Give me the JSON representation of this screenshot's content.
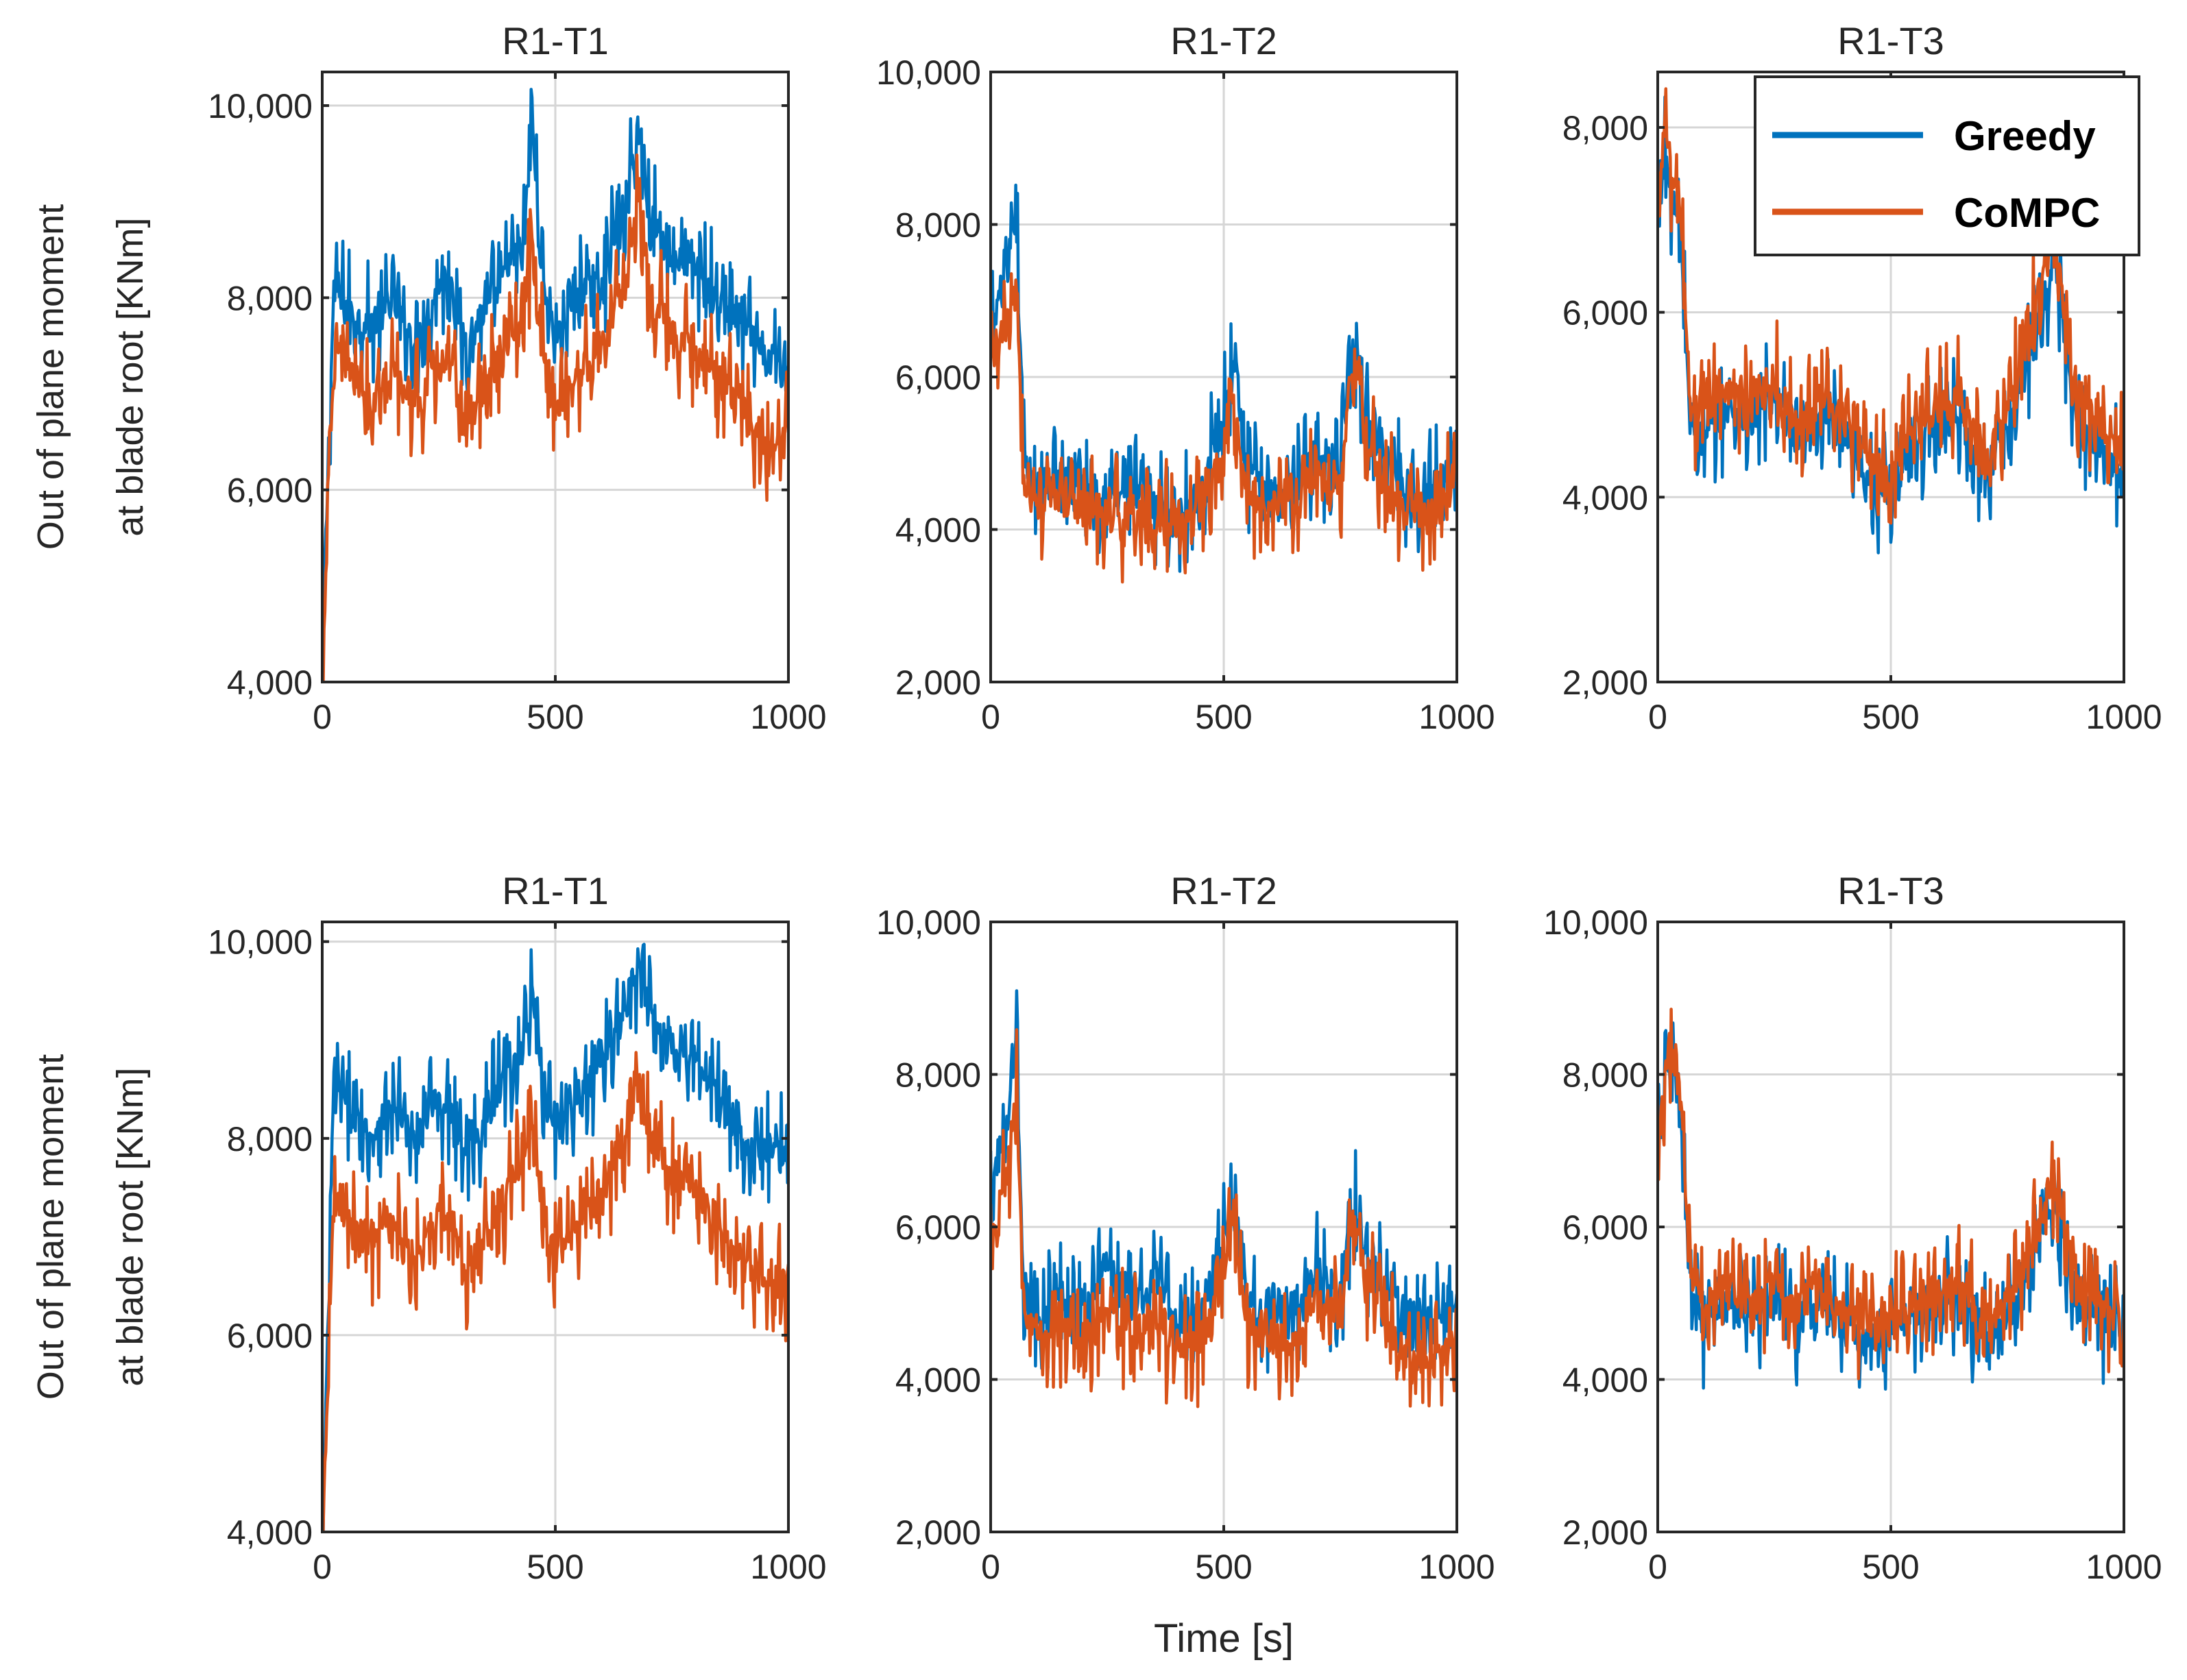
{
  "figure": {
    "colors": {
      "greedy": "#0072BD",
      "compc": "#D95319",
      "axis": "#262626",
      "grid": "#d6d6d6"
    }
  },
  "chart_data": [
    {
      "type": "line",
      "title": "R1-T1",
      "xlabel": "",
      "ylabel_lines": [
        "Out of plane moment",
        "at blade root [KNm]"
      ],
      "xlim": [
        0,
        1000
      ],
      "ylim": [
        4000,
        10350
      ],
      "xticks": [
        0,
        500,
        1000
      ],
      "xtick_labels": [
        "0",
        "500",
        "1000"
      ],
      "yticks": [
        4000,
        6000,
        8000,
        10000
      ],
      "ytick_labels": [
        "4,000",
        "6,000",
        "8,000",
        "10,000"
      ],
      "grid": true,
      "legend": null,
      "series": [
        {
          "name": "Greedy",
          "color": "#0072BD",
          "x": [
            0,
            25,
            50,
            75,
            100,
            150,
            200,
            250,
            280,
            300,
            350,
            400,
            430,
            450,
            470,
            500,
            550,
            600,
            650,
            680,
            700,
            750,
            800,
            850,
            900,
            950,
            1000
          ],
          "y": [
            4600,
            8500,
            8300,
            8200,
            8100,
            8300,
            7900,
            8500,
            8600,
            7900,
            8200,
            8700,
            8800,
            10300,
            8600,
            8000,
            8400,
            8600,
            9300,
            10100,
            9300,
            8800,
            8700,
            8400,
            8100,
            7700,
            7800
          ]
        },
        {
          "name": "CoMPC",
          "color": "#D95319",
          "x": [
            0,
            25,
            50,
            75,
            100,
            150,
            200,
            250,
            280,
            300,
            350,
            400,
            430,
            450,
            470,
            500,
            550,
            600,
            650,
            680,
            700,
            750,
            800,
            850,
            900,
            950,
            1000
          ],
          "y": [
            4500,
            7800,
            7700,
            7600,
            7300,
            7600,
            7300,
            7700,
            7600,
            7100,
            7400,
            7900,
            8100,
            9000,
            7900,
            7300,
            7600,
            7900,
            8500,
            9600,
            8500,
            8000,
            7900,
            7500,
            7300,
            6800,
            7000
          ]
        }
      ]
    },
    {
      "type": "line",
      "title": "R1-T2",
      "xlabel": "",
      "ylabel": "",
      "xlim": [
        0,
        1000
      ],
      "ylim": [
        2000,
        10000
      ],
      "xticks": [
        0,
        500,
        1000
      ],
      "xtick_labels": [
        "0",
        "500",
        "1000"
      ],
      "yticks": [
        2000,
        4000,
        6000,
        8000,
        10000
      ],
      "ytick_labels": [
        "2,000",
        "4,000",
        "6,000",
        "8,000",
        "10,000"
      ],
      "grid": true,
      "legend": null,
      "series": [
        {
          "name": "Greedy",
          "color": "#0072BD",
          "x": [
            0,
            20,
            40,
            55,
            70,
            100,
            150,
            200,
            250,
            300,
            350,
            400,
            450,
            500,
            520,
            550,
            600,
            650,
            700,
            750,
            780,
            800,
            850,
            900,
            950,
            1000
          ],
          "y": [
            7000,
            7500,
            7800,
            8700,
            5500,
            5000,
            5200,
            5100,
            4900,
            5000,
            4800,
            4600,
            5000,
            6000,
            6700,
            5200,
            5000,
            5000,
            5500,
            5200,
            7000,
            6000,
            5400,
            5000,
            5000,
            5600
          ]
        },
        {
          "name": "CoMPC",
          "color": "#D95319",
          "x": [
            0,
            20,
            40,
            55,
            70,
            100,
            150,
            200,
            250,
            300,
            350,
            400,
            450,
            500,
            520,
            550,
            600,
            650,
            700,
            750,
            780,
            800,
            850,
            900,
            950,
            1000
          ],
          "y": [
            6500,
            7000,
            7200,
            8000,
            5100,
            4700,
            4900,
            4800,
            4600,
            4700,
            4600,
            4500,
            4800,
            5600,
            6300,
            4900,
            4800,
            4800,
            5200,
            5000,
            6800,
            5700,
            5000,
            4700,
            4700,
            5200
          ]
        }
      ]
    },
    {
      "type": "line",
      "title": "R1-T3",
      "xlabel": "",
      "ylabel": "",
      "xlim": [
        0,
        1000
      ],
      "ylim": [
        2000,
        8600
      ],
      "xticks": [
        0,
        500,
        1000
      ],
      "xtick_labels": [
        "0",
        "500",
        "1000"
      ],
      "yticks": [
        2000,
        4000,
        6000,
        8000
      ],
      "ytick_labels": [
        "2,000",
        "4,000",
        "6,000",
        "8,000"
      ],
      "grid": true,
      "legend": {
        "position": "top-right",
        "entries": [
          "Greedy",
          "CoMPC"
        ]
      },
      "series": [
        {
          "name": "Greedy",
          "color": "#0072BD",
          "x": [
            0,
            15,
            30,
            50,
            70,
            100,
            150,
            200,
            250,
            300,
            350,
            400,
            450,
            500,
            550,
            600,
            650,
            700,
            750,
            800,
            850,
            900,
            950,
            1000
          ],
          "y": [
            7300,
            8200,
            7600,
            7200,
            5200,
            5000,
            5400,
            5200,
            5500,
            4900,
            5300,
            5200,
            4600,
            4300,
            5000,
            5200,
            5300,
            4600,
            5100,
            6000,
            7000,
            5200,
            4900,
            4600
          ]
        },
        {
          "name": "CoMPC",
          "color": "#D95319",
          "x": [
            0,
            15,
            30,
            50,
            70,
            100,
            150,
            200,
            250,
            300,
            350,
            400,
            450,
            500,
            550,
            600,
            650,
            700,
            750,
            800,
            850,
            900,
            950,
            1000
          ],
          "y": [
            7400,
            8500,
            7800,
            7400,
            5400,
            5300,
            5600,
            5400,
            5700,
            5100,
            5500,
            5300,
            4800,
            4600,
            5200,
            5400,
            5500,
            4900,
            5300,
            6300,
            7300,
            5500,
            5100,
            4900
          ]
        }
      ]
    },
    {
      "type": "line",
      "title": "R1-T1",
      "xlabel": "",
      "ylabel_lines": [
        "Out of plane moment",
        "at blade root [KNm]"
      ],
      "xlim": [
        0,
        1000
      ],
      "ylim": [
        4000,
        10200
      ],
      "xticks": [
        0,
        500,
        1000
      ],
      "xtick_labels": [
        "0",
        "500",
        "1000"
      ],
      "yticks": [
        4000,
        6000,
        8000,
        10000
      ],
      "ytick_labels": [
        "4,000",
        "6,000",
        "8,000",
        "10,000"
      ],
      "grid": true,
      "legend": null,
      "series": [
        {
          "name": "Greedy",
          "color": "#0072BD",
          "x": [
            0,
            25,
            50,
            75,
            100,
            150,
            200,
            250,
            280,
            300,
            350,
            400,
            430,
            450,
            470,
            500,
            550,
            600,
            650,
            680,
            700,
            750,
            800,
            850,
            900,
            950,
            1000
          ],
          "y": [
            4000,
            9000,
            8700,
            8600,
            8400,
            8700,
            8300,
            8800,
            8700,
            8200,
            8600,
            9200,
            9300,
            9900,
            9000,
            8500,
            8800,
            9200,
            9600,
            10100,
            9700,
            9300,
            9200,
            8800,
            8400,
            8200,
            8300
          ]
        },
        {
          "name": "CoMPC",
          "color": "#D95319",
          "x": [
            0,
            25,
            50,
            75,
            100,
            150,
            200,
            250,
            280,
            300,
            350,
            400,
            430,
            450,
            470,
            500,
            550,
            600,
            650,
            680,
            700,
            750,
            800,
            850,
            900,
            950,
            1000
          ],
          "y": [
            4000,
            7900,
            7600,
            7500,
            7300,
            7500,
            7200,
            7600,
            7500,
            7000,
            7300,
            7900,
            8100,
            8500,
            7700,
            7200,
            7500,
            7900,
            8300,
            8900,
            8400,
            8000,
            7900,
            7500,
            7100,
            6900,
            7000
          ]
        }
      ]
    },
    {
      "type": "line",
      "title": "R1-T2",
      "xlabel": "Time [s]",
      "ylabel": "",
      "xlim": [
        0,
        1000
      ],
      "ylim": [
        2000,
        10000
      ],
      "xticks": [
        0,
        500,
        1000
      ],
      "xtick_labels": [
        "0",
        "500",
        "1000"
      ],
      "yticks": [
        2000,
        4000,
        6000,
        8000,
        10000
      ],
      "ytick_labels": [
        "2,000",
        "4,000",
        "6,000",
        "8,000",
        "10,000"
      ],
      "grid": true,
      "legend": null,
      "series": [
        {
          "name": "Greedy",
          "color": "#0072BD",
          "x": [
            0,
            20,
            40,
            55,
            70,
            100,
            150,
            200,
            250,
            300,
            350,
            400,
            450,
            500,
            520,
            550,
            600,
            650,
            700,
            750,
            780,
            800,
            850,
            900,
            950,
            1000
          ],
          "y": [
            7000,
            7600,
            7800,
            9000,
            5700,
            5300,
            5600,
            5400,
            6000,
            5500,
            5800,
            5200,
            5400,
            6200,
            6800,
            5500,
            5200,
            5400,
            5900,
            5600,
            6800,
            6200,
            5600,
            5300,
            5200,
            5500
          ]
        },
        {
          "name": "CoMPC",
          "color": "#D95319",
          "x": [
            0,
            20,
            40,
            55,
            70,
            100,
            150,
            200,
            250,
            300,
            350,
            400,
            450,
            500,
            520,
            550,
            600,
            650,
            700,
            750,
            780,
            800,
            850,
            900,
            950,
            1000
          ],
          "y": [
            6300,
            7000,
            7300,
            8400,
            5300,
            5000,
            5200,
            5000,
            5400,
            5000,
            5300,
            4800,
            5000,
            5800,
            6600,
            5100,
            4900,
            5000,
            5500,
            5300,
            6800,
            5900,
            5200,
            4900,
            4800,
            5100
          ]
        }
      ]
    },
    {
      "type": "line",
      "title": "R1-T3",
      "xlabel": "",
      "ylabel": "",
      "xlim": [
        0,
        1000
      ],
      "ylim": [
        2000,
        10000
      ],
      "xticks": [
        0,
        500,
        1000
      ],
      "xtick_labels": [
        "0",
        "500",
        "1000"
      ],
      "yticks": [
        2000,
        4000,
        6000,
        8000,
        10000
      ],
      "ytick_labels": [
        "2,000",
        "4,000",
        "6,000",
        "8,000",
        "10,000"
      ],
      "grid": true,
      "legend": null,
      "series": [
        {
          "name": "Greedy",
          "color": "#0072BD",
          "x": [
            0,
            15,
            30,
            50,
            70,
            100,
            150,
            200,
            250,
            300,
            350,
            400,
            450,
            500,
            550,
            600,
            650,
            700,
            750,
            800,
            850,
            900,
            950,
            1000
          ],
          "y": [
            7500,
            8300,
            8800,
            7800,
            5600,
            5200,
            5500,
            5300,
            5600,
            5200,
            5500,
            5300,
            5000,
            5100,
            5300,
            5400,
            5600,
            5000,
            5300,
            6000,
            6800,
            5600,
            5300,
            5100
          ]
        },
        {
          "name": "CoMPC",
          "color": "#D95319",
          "x": [
            0,
            15,
            30,
            50,
            70,
            100,
            150,
            200,
            250,
            300,
            350,
            400,
            450,
            500,
            550,
            600,
            650,
            700,
            750,
            800,
            850,
            900,
            950,
            1000
          ],
          "y": [
            7600,
            8400,
            9000,
            8000,
            5800,
            5400,
            5700,
            5500,
            5800,
            5400,
            5700,
            5500,
            5200,
            5300,
            5500,
            5600,
            5800,
            5200,
            5500,
            6200,
            7000,
            5800,
            5500,
            5300
          ]
        }
      ]
    }
  ]
}
